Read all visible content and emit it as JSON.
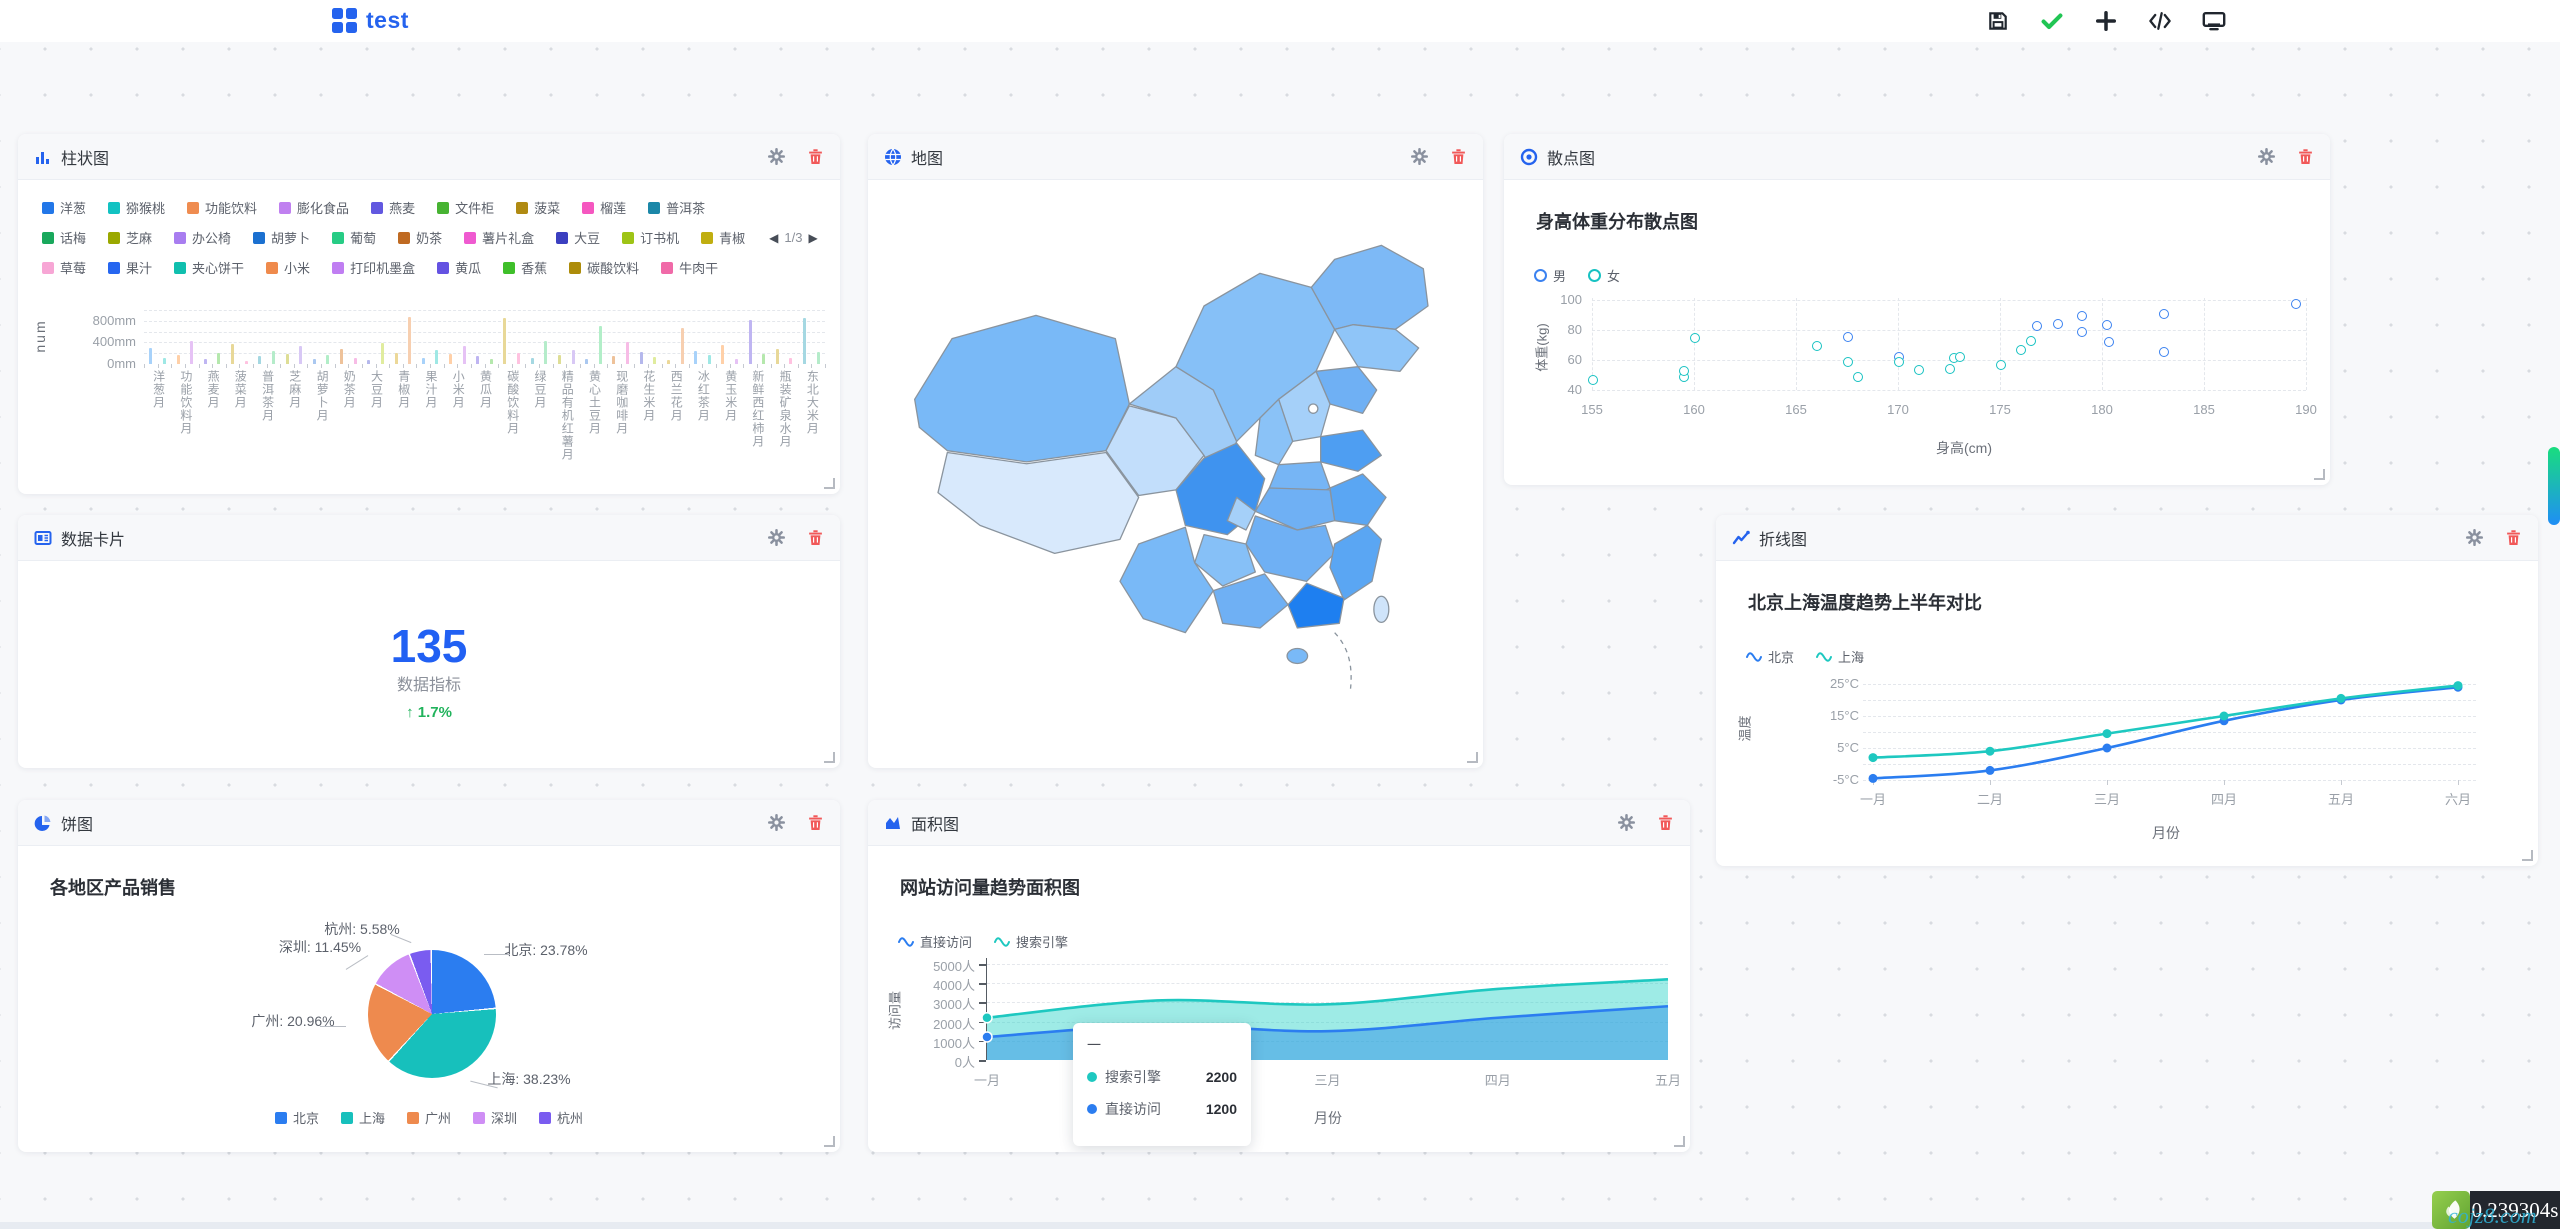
{
  "header": {
    "title": "test",
    "toolbar": [
      {
        "name": "save"
      },
      {
        "name": "confirm"
      },
      {
        "name": "add"
      },
      {
        "name": "code"
      },
      {
        "name": "preview"
      }
    ]
  },
  "footer": {
    "time": "0.239304s",
    "watermark": "cojz8.com"
  },
  "panels": {
    "bar": {
      "title": "柱状图",
      "y_axis_name": "num",
      "legend_pager": "1/3",
      "y_ticks": [
        {
          "v": 0,
          "label": "0mm"
        },
        {
          "v": 400,
          "label": "400mm"
        },
        {
          "v": 800,
          "label": "800mm"
        }
      ],
      "legend_rows": [
        [
          {
            "label": "洋葱",
            "color": "#2277e8"
          },
          {
            "label": "猕猴桃",
            "color": "#12c2c2"
          },
          {
            "label": "功能饮料",
            "color": "#ef8c50"
          },
          {
            "label": "膨化食品",
            "color": "#c080f0"
          },
          {
            "label": "燕麦",
            "color": "#6258e0"
          },
          {
            "label": "文件柜",
            "color": "#47b332"
          },
          {
            "label": "菠菜",
            "color": "#b08a12"
          },
          {
            "label": "榴莲",
            "color": "#f557c0"
          },
          {
            "label": "普洱茶",
            "color": "#1b87a8"
          }
        ],
        [
          {
            "label": "话梅",
            "color": "#19a85c"
          },
          {
            "label": "芝麻",
            "color": "#9aa800"
          },
          {
            "label": "办公椅",
            "color": "#a87df0"
          },
          {
            "label": "胡萝卜",
            "color": "#1b70d0"
          },
          {
            "label": "葡萄",
            "color": "#27cc85"
          },
          {
            "label": "奶茶",
            "color": "#bf6a22"
          },
          {
            "label": "薯片礼盒",
            "color": "#ef5ad0"
          },
          {
            "label": "大豆",
            "color": "#3b3fc0"
          },
          {
            "label": "订书机",
            "color": "#9ec416"
          },
          {
            "label": "青椒",
            "color": "#c0ae10"
          }
        ],
        [
          {
            "label": "草莓",
            "color": "#f7a6d5"
          },
          {
            "label": "果汁",
            "color": "#2666f0"
          },
          {
            "label": "夹心饼干",
            "color": "#10bfae"
          },
          {
            "label": "小米",
            "color": "#ef8a4c"
          },
          {
            "label": "打印机墨盒",
            "color": "#c07ef2"
          },
          {
            "label": "黄瓜",
            "color": "#6452e2"
          },
          {
            "label": "香蕉",
            "color": "#3fbf2a"
          },
          {
            "label": "碳酸饮料",
            "color": "#ad8c0a"
          },
          {
            "label": "牛肉干",
            "color": "#f06aa8"
          }
        ]
      ],
      "x_labels": [
        "洋葱月",
        "功能饮料月",
        "燕麦月",
        "菠菜月",
        "普洱茶月",
        "芝麻月",
        "胡萝卜月",
        "奶茶月",
        "大豆月",
        "青椒月",
        "果汁月",
        "小米月",
        "黄瓜月",
        "碳酸饮料月",
        "绿豆月",
        "精品有机红薯月",
        "黄心土豆月",
        "现磨咖啡月",
        "花生米月",
        "西兰花月",
        "冰红茶月",
        "黄玉米月",
        "新鲜西红柿月",
        "瓶装矿泉水月",
        "东北大米月"
      ],
      "chart": {
        "type": "bar",
        "ylim": [
          0,
          1000
        ],
        "values": [
          300,
          120,
          160,
          420,
          90,
          210,
          380,
          60,
          140,
          250,
          180,
          330,
          95,
          160,
          280,
          120,
          70,
          390,
          210,
          880,
          110,
          260,
          180,
          330,
          140,
          90,
          860,
          200,
          120,
          430,
          170,
          260,
          95,
          700,
          150,
          400,
          220,
          130,
          80,
          670,
          240,
          160,
          350,
          100,
          820,
          190,
          280,
          120,
          850,
          230
        ],
        "colors": [
          "#a8d2fa",
          "#9fe8e5",
          "#ffd0a8",
          "#e6c2f5",
          "#bfb5f2",
          "#b5e8ad",
          "#e8d898",
          "#ffc2e0",
          "#a5d8e2",
          "#b5ecca",
          "#dede96",
          "#d8c8f5",
          "#aac8f0",
          "#b2eec8",
          "#eec29a",
          "#f7bce6",
          "#b5b8ec",
          "#e0ec9e",
          "#ecd898",
          "#f7cfb0"
        ]
      }
    },
    "map": {
      "title": "地图"
    },
    "scatter": {
      "title": "散点图",
      "chart_title": "身高体重分布散点图",
      "xlabel": "身高(cm)",
      "ylabel": "体重(kg)",
      "x_ticks": [
        155,
        160,
        165,
        170,
        175,
        180,
        185,
        190
      ],
      "y_ticks": [
        40,
        60,
        80,
        100
      ],
      "chart": {
        "type": "scatter",
        "series": [
          {
            "name": "男",
            "color": "#3b82f0",
            "points": [
              [
                167.5,
                76
              ],
              [
                170,
                62.5
              ],
              [
                176.8,
                83
              ],
              [
                177.8,
                84.5
              ],
              [
                179,
                79
              ],
              [
                179,
                89.5
              ],
              [
                180.2,
                83.5
              ],
              [
                180.3,
                72.5
              ],
              [
                183,
                66
              ],
              [
                183,
                91
              ],
              [
                189.5,
                98
              ]
            ]
          },
          {
            "name": "女",
            "color": "#18c2c2",
            "points": [
              [
                155,
                47
              ],
              [
                159.5,
                49
              ],
              [
                159.5,
                53
              ],
              [
                160,
                75
              ],
              [
                166,
                70
              ],
              [
                167.5,
                59
              ],
              [
                168,
                49
              ],
              [
                170,
                59
              ],
              [
                171,
                53.5
              ],
              [
                172.5,
                54.5
              ],
              [
                172.7,
                62
              ],
              [
                173,
                62.5
              ],
              [
                175,
                57
              ],
              [
                176,
                67
              ],
              [
                176.5,
                73
              ]
            ]
          }
        ]
      }
    },
    "card": {
      "title": "数据卡片",
      "value": "135",
      "label": "数据指标",
      "arrow": "↑",
      "delta": "1.7%"
    },
    "line": {
      "title": "折线图",
      "chart_title": "北京上海温度趋势上半年对比",
      "xlabel": "月份",
      "ylabel": "温度",
      "categories": [
        "一月",
        "二月",
        "三月",
        "四月",
        "五月",
        "六月"
      ],
      "y_ticks": [
        {
          "v": -5,
          "label": "-5°C"
        },
        {
          "v": 5,
          "label": "5°C"
        },
        {
          "v": 15,
          "label": "15°C"
        },
        {
          "v": 25,
          "label": "25°C"
        }
      ],
      "chart": {
        "type": "line",
        "series": [
          {
            "name": "北京",
            "color": "#2b7df0",
            "values": [
              -4.5,
              -2,
              5,
              13.5,
              20,
              24
            ]
          },
          {
            "name": "上海",
            "color": "#1ec8c0",
            "values": [
              2,
              4,
              9.5,
              15,
              20.5,
              24.5
            ]
          }
        ]
      }
    },
    "pie": {
      "title": "饼图",
      "chart_title": "各地区产品销售",
      "chart": {
        "type": "pie",
        "slices": [
          {
            "name": "北京",
            "value": 23.78,
            "label": "北京: 23.78%",
            "color": "#2b7df0"
          },
          {
            "name": "上海",
            "value": 38.23,
            "label": "上海: 38.23%",
            "color": "#17c0bc"
          },
          {
            "name": "广州",
            "value": 20.96,
            "label": "广州: 20.96%",
            "color": "#ee8a4e"
          },
          {
            "name": "深圳",
            "value": 11.45,
            "label": "深圳: 11.45%",
            "color": "#cf8ef5"
          },
          {
            "name": "杭州",
            "value": 5.58,
            "label": "杭州: 5.58%",
            "color": "#7a5cf0"
          }
        ]
      }
    },
    "area": {
      "title": "面积图",
      "chart_title": "网站访问量趋势面积图",
      "xlabel": "月份",
      "ylabel": "访问量",
      "categories": [
        "一月",
        "二月",
        "三月",
        "四月",
        "五月"
      ],
      "y_ticks": [
        {
          "v": 0,
          "label": "0人"
        },
        {
          "v": 1000,
          "label": "1000人"
        },
        {
          "v": 2000,
          "label": "2000人"
        },
        {
          "v": 3000,
          "label": "3000人"
        },
        {
          "v": 4000,
          "label": "4000人"
        },
        {
          "v": 5000,
          "label": "5000人"
        }
      ],
      "chart": {
        "type": "area",
        "series": [
          {
            "name": "直接访问",
            "color": "#2b7df0",
            "fill": "rgba(45,145,230,0.50)",
            "values": [
              1200,
              1800,
              1500,
              2200,
              2800
            ]
          },
          {
            "name": "搜索引擎",
            "color": "#1ec8c0",
            "fill": "rgba(40,210,200,0.45)",
            "values": [
              2200,
              3100,
              2900,
              3700,
              4200
            ]
          }
        ]
      },
      "tooltip": {
        "title": "一",
        "rows": [
          {
            "name": "搜索引擎",
            "color": "#1ec8c0",
            "value": "2200"
          },
          {
            "name": "直接访问",
            "color": "#2b7df0",
            "value": "1200"
          }
        ]
      }
    }
  }
}
